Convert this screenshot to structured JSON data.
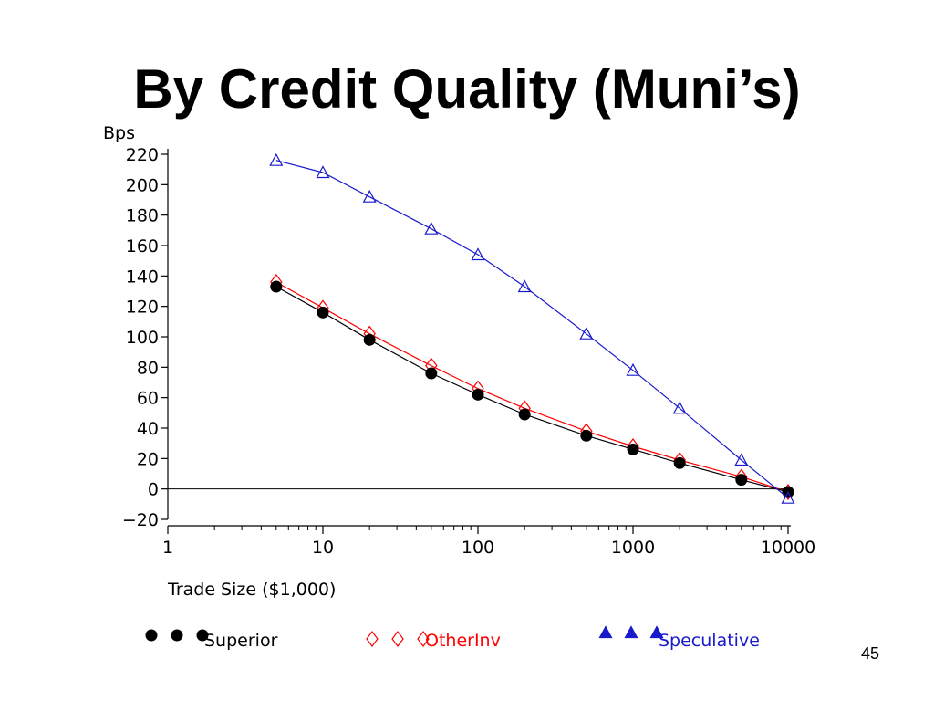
{
  "slide": {
    "title": "By Credit Quality (Muni’s)",
    "page_number": "45"
  },
  "chart_data": {
    "type": "line",
    "title": "By Credit Quality (Muni’s)",
    "xlabel": "Trade Size ($1,000)",
    "ylabel": "Bps",
    "x_scale": "log",
    "xlim": [
      1,
      10000
    ],
    "ylim": [
      -20,
      220
    ],
    "x_ticks": [
      1,
      10,
      100,
      1000,
      10000
    ],
    "x_tick_labels": [
      "1",
      "10",
      "100",
      "1000",
      "10000"
    ],
    "y_ticks": [
      -20,
      0,
      20,
      40,
      60,
      80,
      100,
      120,
      140,
      160,
      180,
      200,
      220
    ],
    "y_tick_labels": [
      "−20",
      "0",
      "20",
      "40",
      "60",
      "80",
      "100",
      "120",
      "140",
      "160",
      "180",
      "200",
      "220"
    ],
    "zero_reference_line": true,
    "grid": false,
    "legend_position": "bottom",
    "x": [
      5,
      10,
      20,
      50,
      100,
      200,
      500,
      1000,
      2000,
      5000,
      10000
    ],
    "series": [
      {
        "name": "Superior",
        "marker": "filled-circle",
        "color": "#000000",
        "values": [
          133,
          116,
          98,
          76,
          62,
          49,
          35,
          26,
          17,
          6,
          -2
        ]
      },
      {
        "name": "OtherInv",
        "marker": "open-diamond",
        "color": "#ff0000",
        "values": [
          136,
          119,
          102,
          81,
          66,
          53,
          38,
          28,
          19,
          8,
          -2
        ]
      },
      {
        "name": "Speculative",
        "marker": "open-triangle",
        "legend_marker": "filled-triangle",
        "color": "#1a1acd",
        "values": [
          216,
          208,
          192,
          171,
          154,
          133,
          102,
          78,
          53,
          19,
          -6
        ]
      }
    ]
  }
}
